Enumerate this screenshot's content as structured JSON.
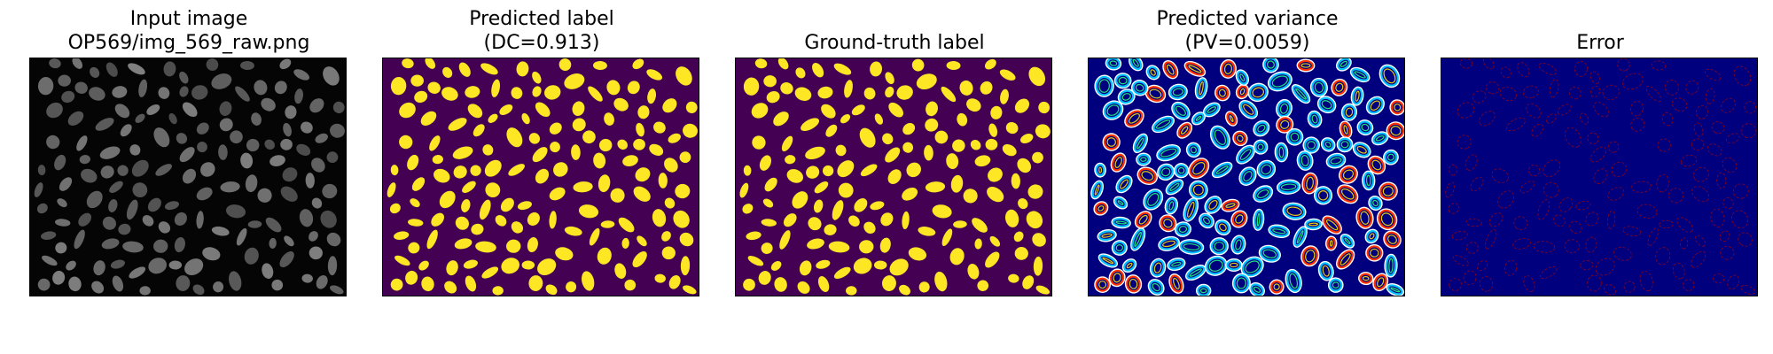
{
  "figure": {
    "panels": [
      {
        "id": "input",
        "title_lines": [
          "Input image",
          "OP569/img_569_raw.png"
        ],
        "render": "raw",
        "background": "#050505"
      },
      {
        "id": "pred",
        "title_lines": [
          "Predicted label",
          "(DC=0.913)"
        ],
        "render": "label",
        "background": "#440154",
        "foreground": "#fde725"
      },
      {
        "id": "gt",
        "title_lines": [
          "",
          "Ground-truth label"
        ],
        "render": "label",
        "background": "#440154",
        "foreground": "#fde725"
      },
      {
        "id": "var",
        "title_lines": [
          "Predicted variance",
          "(PV=0.0059)"
        ],
        "render": "variance",
        "background": "#00007f"
      },
      {
        "id": "err",
        "title_lines": [
          "",
          "Error"
        ],
        "render": "error",
        "background": "#00007f",
        "foreground": "#b00000"
      }
    ]
  }
}
